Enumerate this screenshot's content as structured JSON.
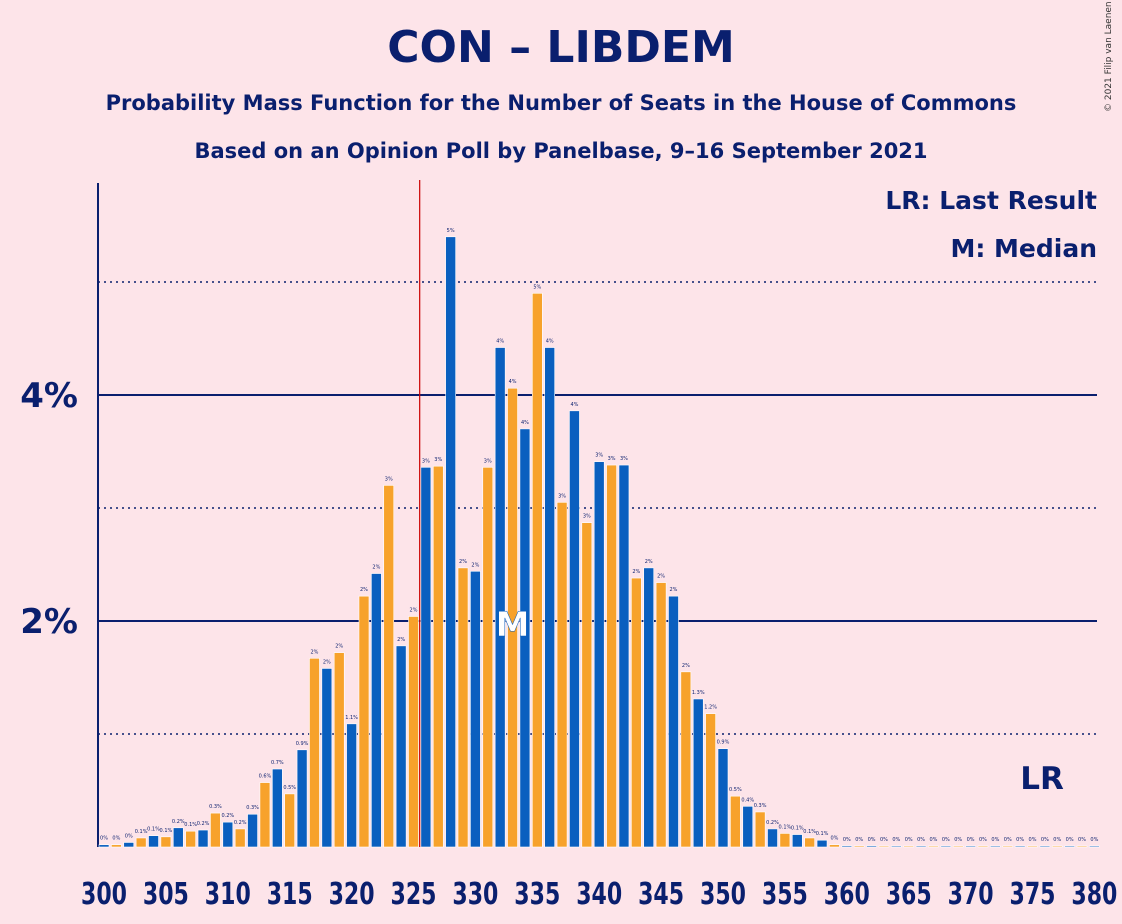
{
  "title": "CON – LIBDEM",
  "subtitle1": "Probability Mass Function for the Number of Seats in the House of Commons",
  "subtitle2": "Based on an Opinion Poll by Panelbase, 9–16 September 2021",
  "copyright": "© 2021 Filip van Laenen",
  "legend": {
    "last_result": "LR: Last Result",
    "median": "M: Median"
  },
  "chart_data": {
    "type": "bar",
    "x_start": 300,
    "x_end": 380,
    "x_tick_labels": [
      "300",
      "305",
      "310",
      "315",
      "320",
      "325",
      "330",
      "335",
      "340",
      "345",
      "350",
      "355",
      "360",
      "365",
      "370",
      "375",
      "380"
    ],
    "y_tick_labels": [
      "2%",
      "4%"
    ],
    "ylim": [
      0,
      5.9
    ],
    "y_major_gridlines": [
      2,
      4
    ],
    "y_minor_gridlines": [
      1,
      3,
      5
    ],
    "colors": {
      "even": "#0a5fbf",
      "odd": "#f7a22b",
      "axis": "#0a1f6e",
      "last_result": "#cc0000",
      "background": "#fde4e9"
    },
    "values": [
      0.02,
      0.02,
      0.04,
      0.08,
      0.1,
      0.09,
      0.17,
      0.14,
      0.15,
      0.3,
      0.22,
      0.16,
      0.29,
      0.57,
      0.69,
      0.47,
      0.86,
      1.67,
      1.58,
      1.72,
      1.09,
      2.22,
      2.42,
      3.2,
      1.78,
      2.04,
      3.36,
      3.37,
      5.4,
      2.47,
      2.44,
      3.36,
      4.42,
      4.06,
      3.7,
      4.9,
      4.42,
      3.05,
      3.86,
      2.87,
      3.41,
      3.38,
      3.38,
      2.38,
      2.47,
      2.34,
      2.22,
      1.55,
      1.31,
      1.18,
      0.87,
      0.45,
      0.36,
      0.31,
      0.16,
      0.12,
      0.11,
      0.08,
      0.06,
      0.02,
      0.01,
      0.01,
      0.01,
      0,
      0,
      0,
      0,
      0,
      0,
      0,
      0,
      0,
      0,
      0,
      0,
      0,
      0,
      0,
      0,
      0,
      0
    ],
    "value_labels": [
      "0%",
      "0%",
      "0%",
      "0.1%",
      "0.1%",
      "0.1%",
      "0.2%",
      "0.1%",
      "0.2%",
      "0.3%",
      "0.2%",
      "0.2%",
      "0.3%",
      "0.6%",
      "0.7%",
      "0.5%",
      "0.9%",
      "2%",
      "2%",
      "2%",
      "1.1%",
      "2%",
      "2%",
      "3%",
      "2%",
      "2%",
      "3%",
      "3%",
      "5%",
      "2%",
      "2%",
      "3%",
      "4%",
      "4%",
      "4%",
      "5%",
      "4%",
      "3%",
      "4%",
      "3%",
      "3%",
      "3%",
      "3%",
      "2%",
      "2%",
      "2%",
      "2%",
      "2%",
      "1.3%",
      "1.2%",
      "0.9%",
      "0.5%",
      "0.4%",
      "0.3%",
      "0.2%",
      "0.1%",
      "0.1%",
      "0.1%",
      "0.1%",
      "0%",
      "0%",
      "0%",
      "0%",
      "0%",
      "0%",
      "0%",
      "0%",
      "0%",
      "0%",
      "0%",
      "0%",
      "0%",
      "0%",
      "0%",
      "0%",
      "0%",
      "0%",
      "0%",
      "0%",
      "0%",
      "0%"
    ],
    "last_result": 326,
    "last_result_label": "LR",
    "median": 333,
    "median_label": "M"
  }
}
